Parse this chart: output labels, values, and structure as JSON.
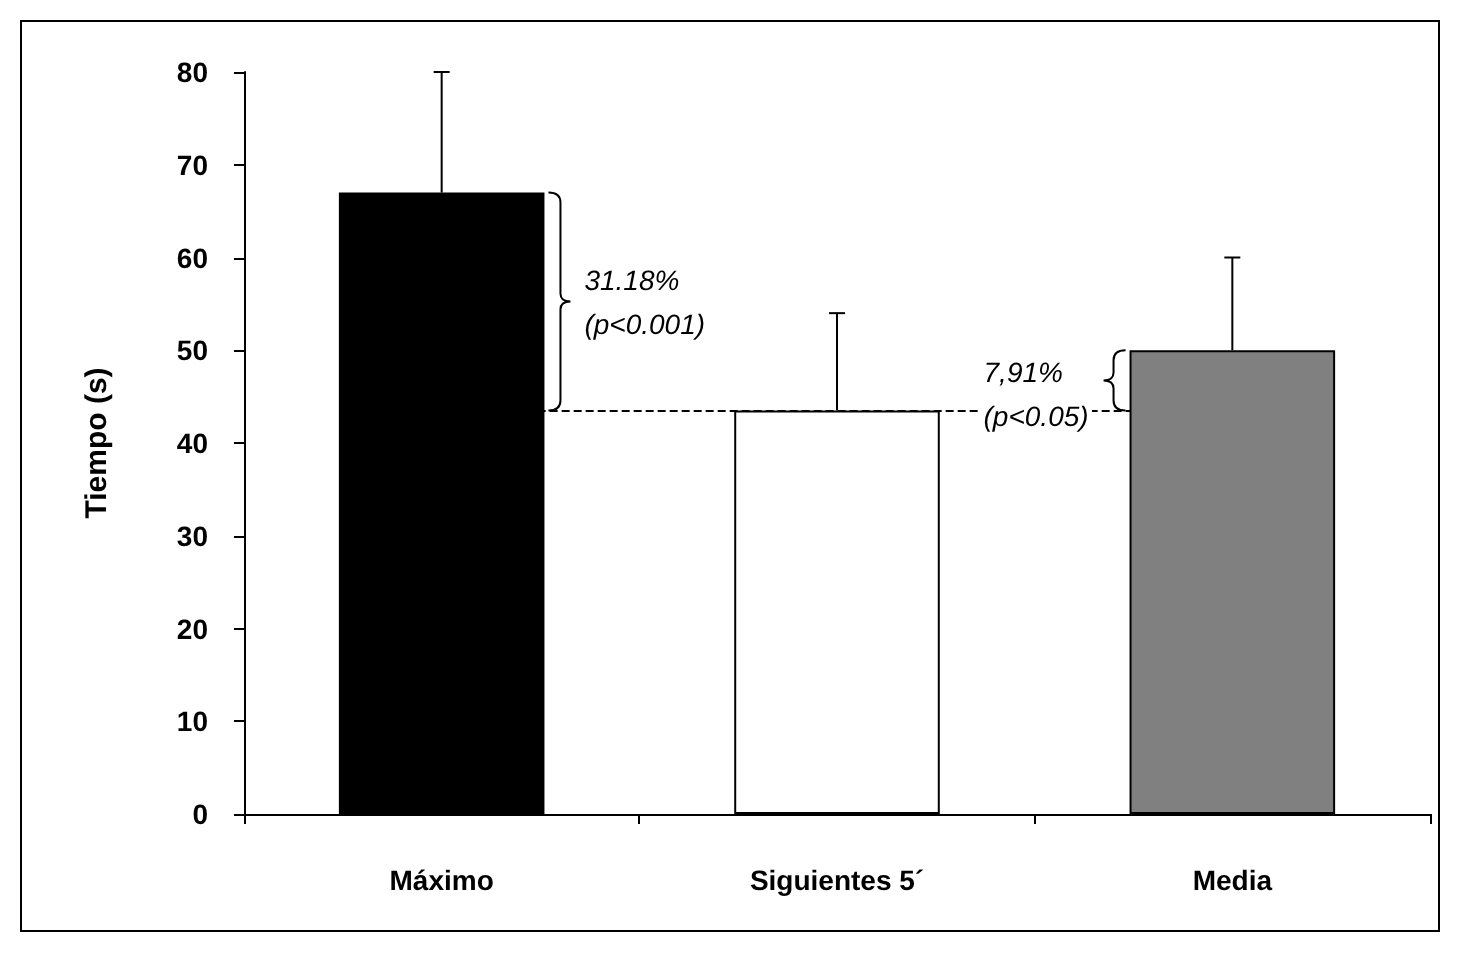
{
  "chart_data": {
    "type": "bar",
    "ylabel": "Tiempo (s)",
    "categories": [
      "Máximo",
      "Siguientes 5´",
      "Media"
    ],
    "values": [
      67,
      43.5,
      50
    ],
    "colors": [
      "#000000",
      "#ffffff",
      "#808080"
    ],
    "errors": [
      [
        67,
        80
      ],
      [
        43.5,
        54
      ],
      [
        50,
        60
      ]
    ],
    "ylim": [
      0,
      80
    ],
    "yticks": [
      0,
      10,
      20,
      30,
      40,
      50,
      60,
      70,
      80
    ],
    "grid": false,
    "ref_lines": [
      {
        "axis": "y",
        "value": 43.5,
        "line_style": "dashed",
        "color": "#000000"
      }
    ],
    "annotations": [
      "31.18%\n(p<0.001)",
      "7,91%\n(p<0.05)"
    ]
  }
}
